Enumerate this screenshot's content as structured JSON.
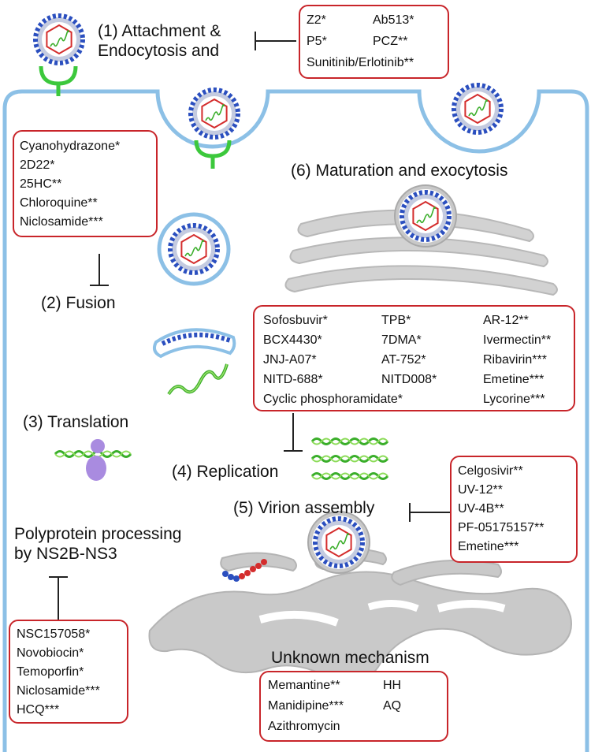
{
  "stages": {
    "attachment": [
      "(1) Attachment &",
      "Endocytosis and"
    ],
    "fusion": "(2) Fusion",
    "translation": "(3) Translation",
    "replication": "(4) Replication",
    "assembly": "(5) Virion assembly",
    "maturation": "(6) Maturation and exocytosis",
    "polyprotein": [
      "Polyprotein processing",
      "by NS2B-NS3"
    ],
    "unknown": "Unknown mechanism"
  },
  "drugs": {
    "attachment": [
      "Z2*",
      "Ab513*",
      "P5*",
      "PCZ**",
      "Sunitinib/Erlotinib**"
    ],
    "fusion": [
      "Cyanohydrazone*",
      "2D22*",
      "25HC**",
      "Chloroquine**",
      "Niclosamide***"
    ],
    "replication": [
      "Sofosbuvir*",
      "TPB*",
      "AR-12**",
      "BCX4430*",
      "7DMA*",
      "Ivermectin**",
      "JNJ-A07*",
      "AT-752*",
      "Ribavirin***",
      "NITD-688*",
      "NITD008*",
      "Emetine***",
      "Cyclic phosphoramidate*",
      "Lycorine***"
    ],
    "assembly": [
      "Celgosivir**",
      "UV-12**",
      "UV-4B**",
      "PF-05175157**",
      "Emetine***"
    ],
    "polyprotein": [
      "NSC157058*",
      "Novobiocin*",
      "Temoporfin*",
      "Niclosamide***",
      "HCQ***"
    ],
    "unknown": [
      "Memantine**",
      "HH",
      "Manidipine***",
      "AQ",
      "Azithromycin"
    ]
  },
  "colors": {
    "membrane": "#8cc0e6",
    "box_border": "#c8252a",
    "spike": "#2b4fbf",
    "capsid": "#d42d2d",
    "rna": "#3aae2a",
    "receptor": "#3cc83c",
    "er": "#c9c9c9",
    "ribosome": "#a98be0"
  }
}
